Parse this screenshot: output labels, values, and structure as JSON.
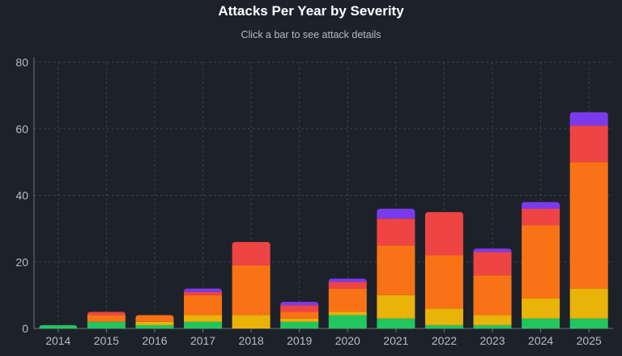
{
  "chart_data": {
    "type": "bar",
    "stacked": true,
    "title": "Attacks Per Year by Severity",
    "subtitle": "Click a bar to see attack details",
    "xlabel": "",
    "ylabel": "",
    "ylim": [
      0,
      80
    ],
    "yticks": [
      0,
      20,
      40,
      60,
      80
    ],
    "grid": true,
    "legend": "none",
    "categories": [
      "2014",
      "2015",
      "2016",
      "2017",
      "2018",
      "2019",
      "2020",
      "2021",
      "2022",
      "2023",
      "2024",
      "2025"
    ],
    "series": [
      {
        "color": "#22c55e",
        "values": [
          1,
          2,
          1,
          2,
          0,
          2,
          4,
          3,
          1,
          1,
          3,
          3
        ]
      },
      {
        "color": "#eab308",
        "values": [
          0,
          0,
          1,
          2,
          4,
          1,
          1,
          7,
          5,
          3,
          6,
          9
        ]
      },
      {
        "color": "#f97316",
        "values": [
          0,
          2,
          2,
          6,
          15,
          2,
          7,
          15,
          16,
          12,
          22,
          38
        ]
      },
      {
        "color": "#ef4444",
        "values": [
          0,
          1,
          0,
          1,
          7,
          2,
          2,
          8,
          13,
          7,
          5,
          11
        ]
      },
      {
        "color": "#7c3aed",
        "values": [
          0,
          0,
          0,
          1,
          0,
          1,
          1,
          3,
          0,
          1,
          2,
          4
        ]
      }
    ]
  }
}
